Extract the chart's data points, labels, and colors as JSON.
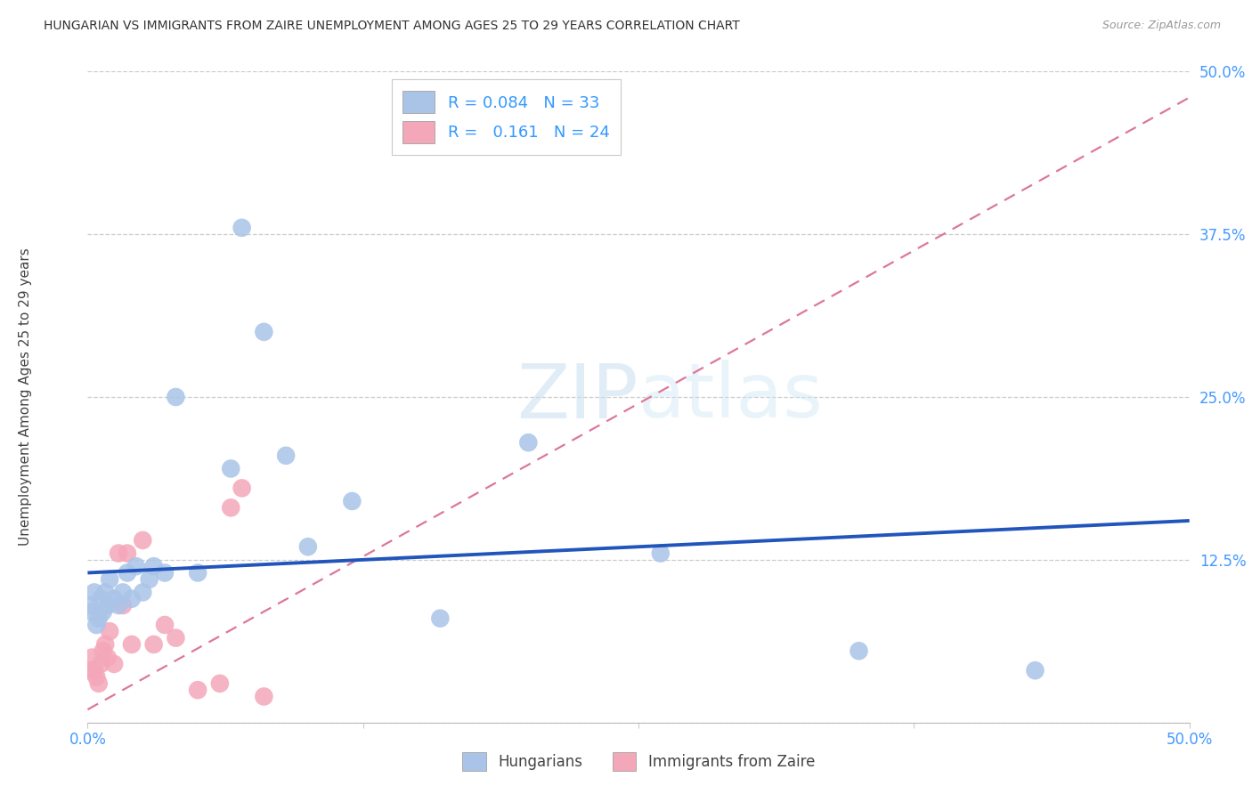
{
  "title": "HUNGARIAN VS IMMIGRANTS FROM ZAIRE UNEMPLOYMENT AMONG AGES 25 TO 29 YEARS CORRELATION CHART",
  "source": "Source: ZipAtlas.com",
  "ylabel": "Unemployment Among Ages 25 to 29 years",
  "xlim": [
    0.0,
    0.5
  ],
  "ylim": [
    0.0,
    0.5
  ],
  "xtick_vals": [
    0.0,
    0.125,
    0.25,
    0.375,
    0.5
  ],
  "ytick_vals": [
    0.0,
    0.125,
    0.25,
    0.375,
    0.5
  ],
  "xtick_labels": [
    "0.0%",
    "",
    "",
    "",
    "50.0%"
  ],
  "ytick_labels": [
    "",
    "12.5%",
    "25.0%",
    "37.5%",
    "50.0%"
  ],
  "grid_color": "#cccccc",
  "bg_color": "#ffffff",
  "hun_dot_color": "#aac4e8",
  "zaire_dot_color": "#f4a7b9",
  "hun_line_color": "#2255bb",
  "zaire_line_color": "#dd7799",
  "legend_r_hun": "0.084",
  "legend_n_hun": "33",
  "legend_r_zaire": "0.161",
  "legend_n_zaire": "24",
  "hun_x": [
    0.001,
    0.002,
    0.003,
    0.004,
    0.005,
    0.006,
    0.007,
    0.008,
    0.009,
    0.01,
    0.012,
    0.014,
    0.016,
    0.018,
    0.02,
    0.022,
    0.025,
    0.028,
    0.03,
    0.035,
    0.04,
    0.05,
    0.065,
    0.07,
    0.08,
    0.09,
    0.1,
    0.12,
    0.16,
    0.2,
    0.26,
    0.35,
    0.43
  ],
  "hun_y": [
    0.09,
    0.085,
    0.1,
    0.075,
    0.08,
    0.095,
    0.085,
    0.1,
    0.09,
    0.11,
    0.095,
    0.09,
    0.1,
    0.115,
    0.095,
    0.12,
    0.1,
    0.11,
    0.12,
    0.115,
    0.25,
    0.115,
    0.195,
    0.38,
    0.3,
    0.205,
    0.135,
    0.17,
    0.08,
    0.215,
    0.13,
    0.055,
    0.04
  ],
  "zaire_x": [
    0.001,
    0.002,
    0.003,
    0.004,
    0.005,
    0.006,
    0.007,
    0.008,
    0.009,
    0.01,
    0.012,
    0.014,
    0.016,
    0.018,
    0.02,
    0.025,
    0.03,
    0.035,
    0.04,
    0.05,
    0.06,
    0.065,
    0.07,
    0.08
  ],
  "zaire_y": [
    0.04,
    0.05,
    0.04,
    0.035,
    0.03,
    0.045,
    0.055,
    0.06,
    0.05,
    0.07,
    0.045,
    0.13,
    0.09,
    0.13,
    0.06,
    0.14,
    0.06,
    0.075,
    0.065,
    0.025,
    0.03,
    0.165,
    0.18,
    0.02
  ]
}
